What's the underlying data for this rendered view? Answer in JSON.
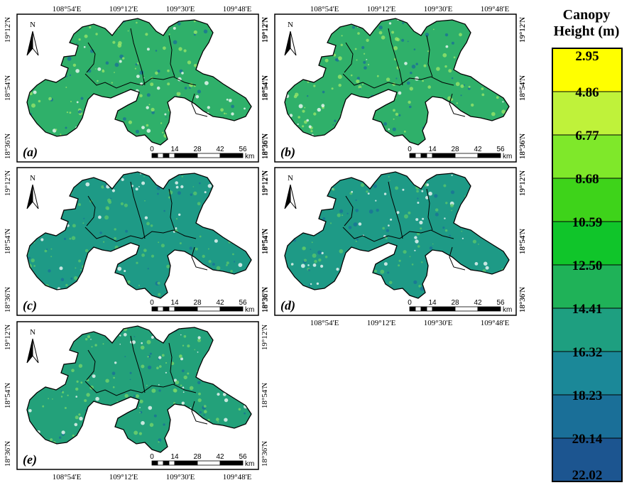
{
  "legend": {
    "title_line1": "Canopy",
    "title_line2": "Height (m)",
    "values": [
      "2.95",
      "4.86",
      "6.77",
      "8.68",
      "10.59",
      "12.50",
      "14.41",
      "16.32",
      "18.23",
      "20.14",
      "22.02"
    ],
    "colors": [
      "#ffff00",
      "#bff23a",
      "#7fe82a",
      "#3ed31a",
      "#10c52a",
      "#1fb258",
      "#1e9f80",
      "#1b8898",
      "#1a6f98",
      "#1c5590",
      "#143a86"
    ]
  },
  "axes": {
    "lon_ticks": [
      "108°54'E",
      "109°12'E",
      "109°30'E",
      "109°48'E"
    ],
    "lat_ticks": [
      "19°12'N",
      "18°54'N",
      "18°36'N"
    ]
  },
  "north_label": "N",
  "scalebar": {
    "ticks": [
      "0",
      "14",
      "28",
      "42",
      "56"
    ],
    "unit": "km"
  },
  "panels": [
    {
      "label": "(a)",
      "fill": "#2fb06a",
      "speckle": "#9ee86a"
    },
    {
      "label": "(b)",
      "fill": "#2fb06a",
      "speckle": "#9ee86a"
    },
    {
      "label": "(c)",
      "fill": "#1e9a86",
      "speckle": "#5cc86a"
    },
    {
      "label": "(d)",
      "fill": "#1e9a86",
      "speckle": "#5cc86a"
    },
    {
      "label": "(e)",
      "fill": "#23a17a",
      "speckle": "#7ad86a"
    }
  ]
}
